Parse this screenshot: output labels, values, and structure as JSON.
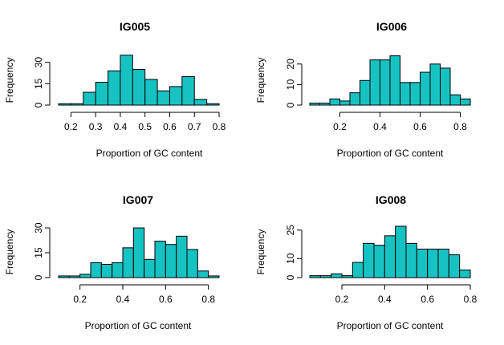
{
  "chart_data": [
    {
      "type": "bar",
      "title": "IG005",
      "xlabel": "Proportion of GC content",
      "ylabel": "Frequency",
      "xlim": [
        0.15,
        0.8
      ],
      "ylim": [
        0,
        36
      ],
      "x_ticks": [
        "0.2",
        "0.3",
        "0.4",
        "0.5",
        "0.6",
        "0.7",
        "0.8"
      ],
      "y_ticks": [
        "0",
        "15",
        "30"
      ],
      "grid": false,
      "bar_color": "#17c2c2",
      "bin_edges": [
        0.15,
        0.2,
        0.25,
        0.3,
        0.35,
        0.4,
        0.45,
        0.5,
        0.55,
        0.6,
        0.65,
        0.7,
        0.75,
        0.8
      ],
      "values": [
        1,
        1,
        9,
        16,
        24,
        35,
        25,
        18,
        10,
        13,
        20,
        4,
        1
      ]
    },
    {
      "type": "bar",
      "title": "IG006",
      "xlabel": "Proportion of GC content",
      "ylabel": "Frequency",
      "xlim": [
        0.05,
        0.85
      ],
      "ylim": [
        0,
        25
      ],
      "x_ticks": [
        "0.2",
        "0.4",
        "0.6",
        "0.8"
      ],
      "y_ticks": [
        "0",
        "10",
        "20"
      ],
      "grid": false,
      "bar_color": "#17c2c2",
      "bin_edges": [
        0.05,
        0.1,
        0.15,
        0.2,
        0.25,
        0.3,
        0.35,
        0.4,
        0.45,
        0.5,
        0.55,
        0.6,
        0.65,
        0.7,
        0.75,
        0.8,
        0.85
      ],
      "values": [
        1,
        1,
        3,
        2,
        6,
        12,
        22,
        22,
        24,
        11,
        11,
        16,
        20,
        18,
        5,
        3
      ]
    },
    {
      "type": "bar",
      "title": "IG007",
      "xlabel": "Proportion of GC content",
      "ylabel": "Frequency",
      "xlim": [
        0.1,
        0.85
      ],
      "ylim": [
        0,
        31
      ],
      "x_ticks": [
        "0.2",
        "0.4",
        "0.6",
        "0.8"
      ],
      "y_ticks": [
        "0",
        "15",
        "30"
      ],
      "grid": false,
      "bar_color": "#17c2c2",
      "bin_edges": [
        0.1,
        0.15,
        0.2,
        0.25,
        0.3,
        0.35,
        0.4,
        0.45,
        0.5,
        0.55,
        0.6,
        0.65,
        0.7,
        0.75,
        0.8,
        0.85
      ],
      "values": [
        1,
        1,
        2,
        9,
        8,
        9,
        18,
        30,
        11,
        22,
        20,
        25,
        17,
        4,
        1
      ]
    },
    {
      "type": "bar",
      "title": "IG008",
      "xlabel": "Proportion of GC content",
      "ylabel": "Frequency",
      "xlim": [
        0.05,
        0.8
      ],
      "ylim": [
        0,
        27
      ],
      "x_ticks": [
        "0.2",
        "0.4",
        "0.6",
        "0.8"
      ],
      "y_ticks": [
        "0",
        "10",
        "25"
      ],
      "grid": false,
      "bar_color": "#17c2c2",
      "bin_edges": [
        0.05,
        0.1,
        0.15,
        0.2,
        0.25,
        0.3,
        0.35,
        0.4,
        0.45,
        0.5,
        0.55,
        0.6,
        0.65,
        0.7,
        0.75,
        0.8
      ],
      "values": [
        1,
        1,
        2,
        1,
        8,
        18,
        17,
        22,
        27,
        18,
        15,
        15,
        15,
        12,
        4
      ]
    }
  ]
}
